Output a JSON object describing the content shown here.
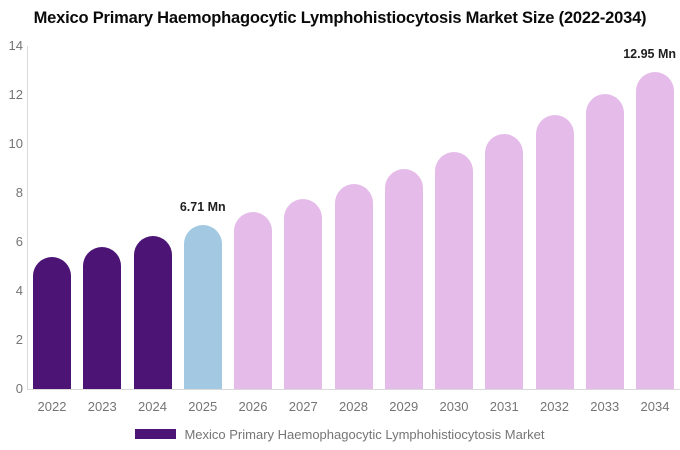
{
  "chart_data": {
    "type": "bar",
    "title": "Mexico Primary Haemophagocytic Lymphohistiocytosis Market Size (2022-2034)",
    "unit": "Mn",
    "categories": [
      "2022",
      "2023",
      "2024",
      "2025",
      "2026",
      "2027",
      "2028",
      "2029",
      "2030",
      "2031",
      "2032",
      "2033",
      "2034"
    ],
    "values": [
      5.39,
      5.8,
      6.24,
      6.71,
      7.22,
      7.77,
      8.36,
      8.99,
      9.68,
      10.41,
      11.2,
      12.05,
      12.95
    ],
    "bar_roles": [
      "historical",
      "historical",
      "historical",
      "base_year",
      "forecast",
      "forecast",
      "forecast",
      "forecast",
      "forecast",
      "forecast",
      "forecast",
      "forecast",
      "forecast"
    ],
    "role_colors": {
      "historical": "#4B1475",
      "base_year": "#A2C9E1",
      "forecast": "#E5BCE9"
    },
    "ylim": [
      0,
      14
    ],
    "yticks": [
      0,
      2,
      4,
      6,
      8,
      10,
      12,
      14
    ],
    "grid": false,
    "legend_position": "bottom",
    "annotations": [
      {
        "category": "2025",
        "text": "6.71 Mn"
      },
      {
        "category": "2034",
        "text": "12.95 Mn"
      }
    ]
  },
  "legend": {
    "swatch_color": "#4B1475",
    "label": "Mexico Primary Haemophagocytic Lymphohistiocytosis Market"
  },
  "colors": {
    "background": "#ffffff",
    "axis_line": "#d9d9d9",
    "tick_label": "#757575",
    "annotation_text": "#1f1f1f",
    "title_text": "#0a0a0a"
  }
}
